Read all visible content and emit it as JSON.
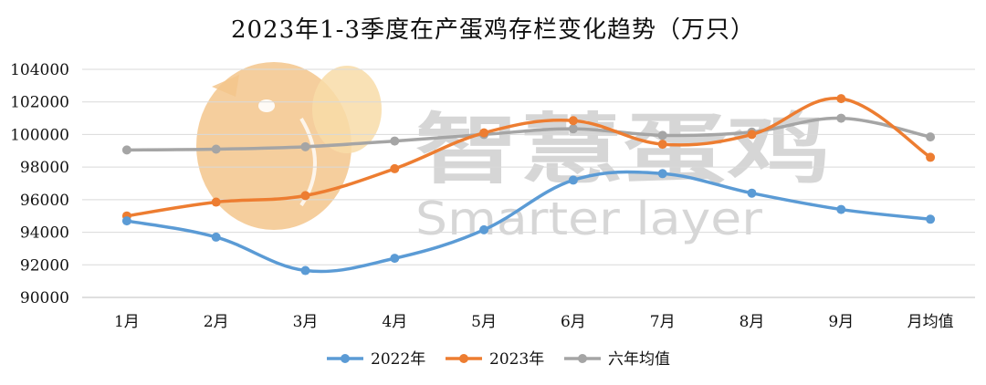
{
  "chart_data": {
    "type": "line",
    "title": "2023年1-3季度在产蛋鸡存栏变化趋势（万只）",
    "categories": [
      "1月",
      "2月",
      "3月",
      "4月",
      "5月",
      "6月",
      "7月",
      "8月",
      "9月",
      "月均值"
    ],
    "ylim": [
      90000,
      104000
    ],
    "yticks": [
      90000,
      92000,
      94000,
      96000,
      98000,
      100000,
      102000,
      104000
    ],
    "grid": true,
    "legend_position": "bottom",
    "series": [
      {
        "name": "2022年",
        "color": "#5b9bd5",
        "values": [
          94700,
          93700,
          91650,
          92400,
          94150,
          97200,
          97600,
          96400,
          95400,
          94800
        ]
      },
      {
        "name": "2023年",
        "color": "#ed7d31",
        "values": [
          95000,
          95850,
          96250,
          97900,
          100100,
          100850,
          99400,
          100000,
          102200,
          98600
        ]
      },
      {
        "name": "六年均值",
        "color": "#a5a5a5",
        "values": [
          99050,
          99100,
          99250,
          99600,
          100000,
          100350,
          99950,
          100150,
          101000,
          99850
        ]
      }
    ]
  },
  "watermark": {
    "brand_cn": "智慧蛋鸡",
    "brand_en": "Smarter layer",
    "logo_icon": "chicken-logo-icon",
    "logo_colors": [
      "#f3c58c",
      "#f8dca8"
    ]
  }
}
